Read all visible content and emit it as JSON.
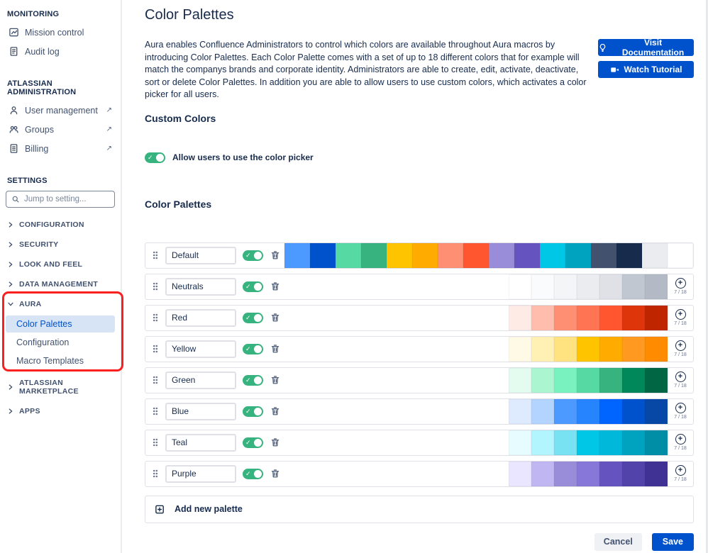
{
  "colors": {
    "accent": "#0052CC",
    "toggle_on": "#36B37E",
    "selected_bg": "#D7E4F6",
    "annotation": "#FB2020",
    "border": "#DFE1E6"
  },
  "ui": {
    "plus_symbol": "+",
    "check_symbol": "✓",
    "external_symbol": "↗"
  },
  "sidebar": {
    "monitoring": {
      "header": "MONITORING",
      "items": [
        {
          "label": "Mission control",
          "icon": "mission-control-icon"
        },
        {
          "label": "Audit log",
          "icon": "audit-log-icon"
        }
      ]
    },
    "admin": {
      "header": "ATLASSIAN ADMINISTRATION",
      "items": [
        {
          "label": "User management",
          "icon": "user-icon",
          "external": true
        },
        {
          "label": "Groups",
          "icon": "groups-icon",
          "external": true
        },
        {
          "label": "Billing",
          "icon": "billing-icon",
          "external": true
        }
      ]
    },
    "settings": {
      "header": "SETTINGS",
      "search_placeholder": "Jump to setting...",
      "groups": [
        {
          "label": "CONFIGURATION"
        },
        {
          "label": "SECURITY"
        },
        {
          "label": "LOOK AND FEEL"
        },
        {
          "label": "DATA MANAGEMENT"
        },
        {
          "label": "AURA",
          "expanded": true
        },
        {
          "label": "ATLASSIAN MARKETPLACE"
        },
        {
          "label": "APPS"
        }
      ],
      "aura_children": [
        {
          "label": "Color Palettes",
          "selected": true
        },
        {
          "label": "Configuration",
          "selected": false
        },
        {
          "label": "Macro Templates",
          "selected": false
        }
      ]
    }
  },
  "main": {
    "title": "Color Palettes",
    "description": "Aura enables Confluence Administrators to control which colors are available throughout Aura macros by introducing Color Palettes. Each Color Palette comes with a set of up to 18 different colors that for example will match the companys brands and corporate identity. Administrators are able to create, edit, activate, deactivate, sort or delete Color Palettes. In addition you are able to allow users to use custom colors, which activates a color picker for all users.",
    "actions": {
      "visit_documentation": "Visit Documentation",
      "watch_tutorial": "Watch Tutorial"
    },
    "custom_colors": {
      "heading": "Custom Colors",
      "toggle_label": "Allow users to use the color picker",
      "enabled": true
    },
    "palettes_section": {
      "heading": "Color Palettes",
      "add_button": "Add new palette",
      "palettes": [
        {
          "name": "Default",
          "enabled": true,
          "count": null,
          "colors": [
            "#4C9AFF",
            "#0052CC",
            "#57D9A3",
            "#36B37E",
            "#FFC400",
            "#FFAB00",
            "#FF8F73",
            "#FF5630",
            "#998DD9",
            "#6554C0",
            "#00C7E6",
            "#00A3BF",
            "#42526E",
            "#172B4D",
            "#EBECF0",
            "#FFFFFF"
          ]
        },
        {
          "name": "Neutrals",
          "enabled": true,
          "count": "7 / 18",
          "colors": [
            "#FFFFFF",
            "#FAFBFC",
            "#F4F5F7",
            "#EBECF0",
            "#DFE1E6",
            "#C1C7D0",
            "#B3BAC5"
          ]
        },
        {
          "name": "Red",
          "enabled": true,
          "count": "7 / 18",
          "colors": [
            "#FFEBE6",
            "#FFBDAD",
            "#FF8F73",
            "#FF7452",
            "#FF5630",
            "#DE350B",
            "#BF2600"
          ]
        },
        {
          "name": "Yellow",
          "enabled": true,
          "count": "7 / 18",
          "colors": [
            "#FFFAE6",
            "#FFF0B3",
            "#FFE380",
            "#FFC400",
            "#FFAB00",
            "#FF991F",
            "#FF8B00"
          ]
        },
        {
          "name": "Green",
          "enabled": true,
          "count": "7 / 18",
          "colors": [
            "#E3FCEF",
            "#ABF5D1",
            "#79F2C0",
            "#57D9A3",
            "#36B37E",
            "#00875A",
            "#006644"
          ]
        },
        {
          "name": "Blue",
          "enabled": true,
          "count": "7 / 18",
          "colors": [
            "#DEEBFF",
            "#B3D4FF",
            "#4C9AFF",
            "#2684FF",
            "#0065FF",
            "#0052CC",
            "#0747A6"
          ]
        },
        {
          "name": "Teal",
          "enabled": true,
          "count": "7 / 18",
          "colors": [
            "#E6FCFF",
            "#B3F5FF",
            "#79E2F2",
            "#00C7E6",
            "#00B8D9",
            "#00A3BF",
            "#008DA6"
          ]
        },
        {
          "name": "Purple",
          "enabled": true,
          "count": "7 / 18",
          "colors": [
            "#EAE6FF",
            "#C0B6F2",
            "#998DD9",
            "#8777D9",
            "#6554C0",
            "#5243AA",
            "#403294"
          ]
        }
      ]
    },
    "footer": {
      "cancel": "Cancel",
      "save": "Save"
    }
  }
}
